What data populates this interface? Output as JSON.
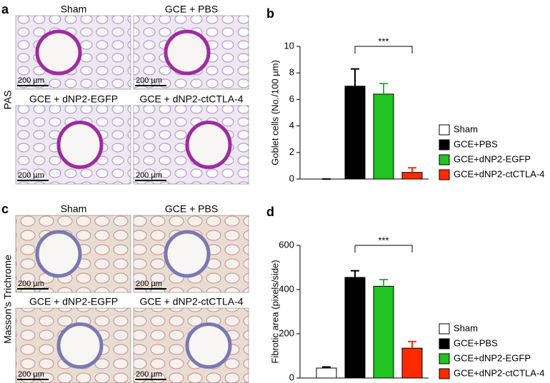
{
  "panels": [
    {
      "label": "a",
      "stain": "PAS",
      "images": [
        {
          "title": "Sham",
          "scale_bar": "200 µm"
        },
        {
          "title": "GCE + PBS",
          "scale_bar": "200 µm"
        },
        {
          "title": "GCE + dNP2-EGFP",
          "scale_bar": "200 µm"
        },
        {
          "title": "GCE + dNP2-ctCTLA-4",
          "scale_bar": "200 µm"
        }
      ]
    },
    {
      "label": "c",
      "stain": "Masson's Trichrome",
      "images": [
        {
          "title": "Sham",
          "scale_bar": "200 µm"
        },
        {
          "title": "GCE + PBS",
          "scale_bar": "200 µm"
        },
        {
          "title": "GCE + dNP2-EGFP",
          "scale_bar": "200 µm"
        },
        {
          "title": "GCE + dNP2-ctCTLA-4",
          "scale_bar": "200 µm"
        }
      ]
    }
  ],
  "chart_data": [
    {
      "type": "bar",
      "label": "b",
      "ylabel": "Goblet cells (No./100 µm)",
      "categories": [
        "Sham",
        "GCE+PBS",
        "GCE+dNP2-EGFP",
        "GCE+dNP2-ctCTLA-4"
      ],
      "colors": [
        "#ffffff",
        "#000000",
        "#22c422",
        "#ff2a00"
      ],
      "values": [
        0,
        7.0,
        6.4,
        0.5
      ],
      "errors": [
        0,
        1.3,
        0.8,
        0.35
      ],
      "ylim": [
        0,
        10
      ],
      "yticks": [
        0,
        2,
        4,
        6,
        8,
        10
      ],
      "annotation": "***"
    },
    {
      "type": "bar",
      "label": "d",
      "ylabel": "Fibrotic area (pixels/side)",
      "categories": [
        "Sham",
        "GCE+PBS",
        "GCE+dNP2-EGFP",
        "GCE+dNP2-ctCTLA-4"
      ],
      "colors": [
        "#ffffff",
        "#000000",
        "#22c422",
        "#ff2a00"
      ],
      "values": [
        45,
        455,
        415,
        135
      ],
      "errors": [
        5,
        30,
        30,
        30
      ],
      "ylim": [
        0,
        600
      ],
      "yticks": [
        0,
        200,
        400,
        600
      ],
      "annotation": "***"
    }
  ]
}
